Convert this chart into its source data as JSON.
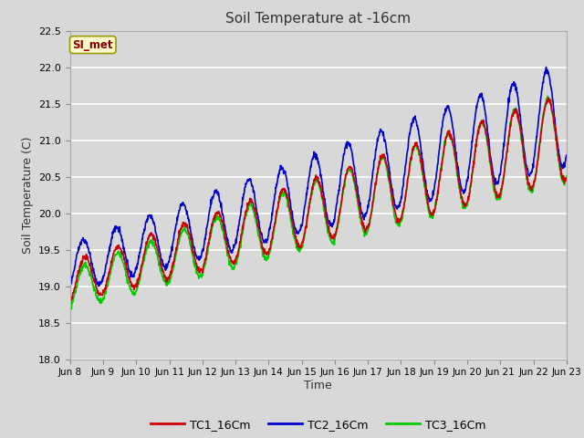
{
  "title": "Soil Temperature at -16cm",
  "xlabel": "Time",
  "ylabel": "Soil Temperature (C)",
  "ylim": [
    18.0,
    22.5
  ],
  "yticks": [
    18.0,
    18.5,
    19.0,
    19.5,
    20.0,
    20.5,
    21.0,
    21.5,
    22.0,
    22.5
  ],
  "xtick_labels": [
    "Jun 8",
    "Jun 9",
    "Jun 10",
    "Jun 11",
    "Jun 12",
    "Jun 13",
    "Jun 14",
    "Jun 15",
    "Jun 16",
    "Jun 17",
    "Jun 18",
    "Jun 19",
    "Jun 20",
    "Jun 21",
    "Jun 22",
    "Jun 23"
  ],
  "annotation_text": "SI_met",
  "annotation_color": "#8B0000",
  "annotation_bg": "#FFFACD",
  "annotation_border": "#999900",
  "colors": {
    "TC1": "#CC0000",
    "TC2": "#0000CC",
    "TC3": "#00CC00"
  },
  "legend_labels": [
    "TC1_16Cm",
    "TC2_16Cm",
    "TC3_16Cm"
  ],
  "fig_bg_color": "#D8D8D8",
  "plot_bg": "#D8D8D8",
  "grid_color": "#FFFFFF",
  "line_width": 1.2,
  "total_days": 15,
  "points_per_day": 96
}
